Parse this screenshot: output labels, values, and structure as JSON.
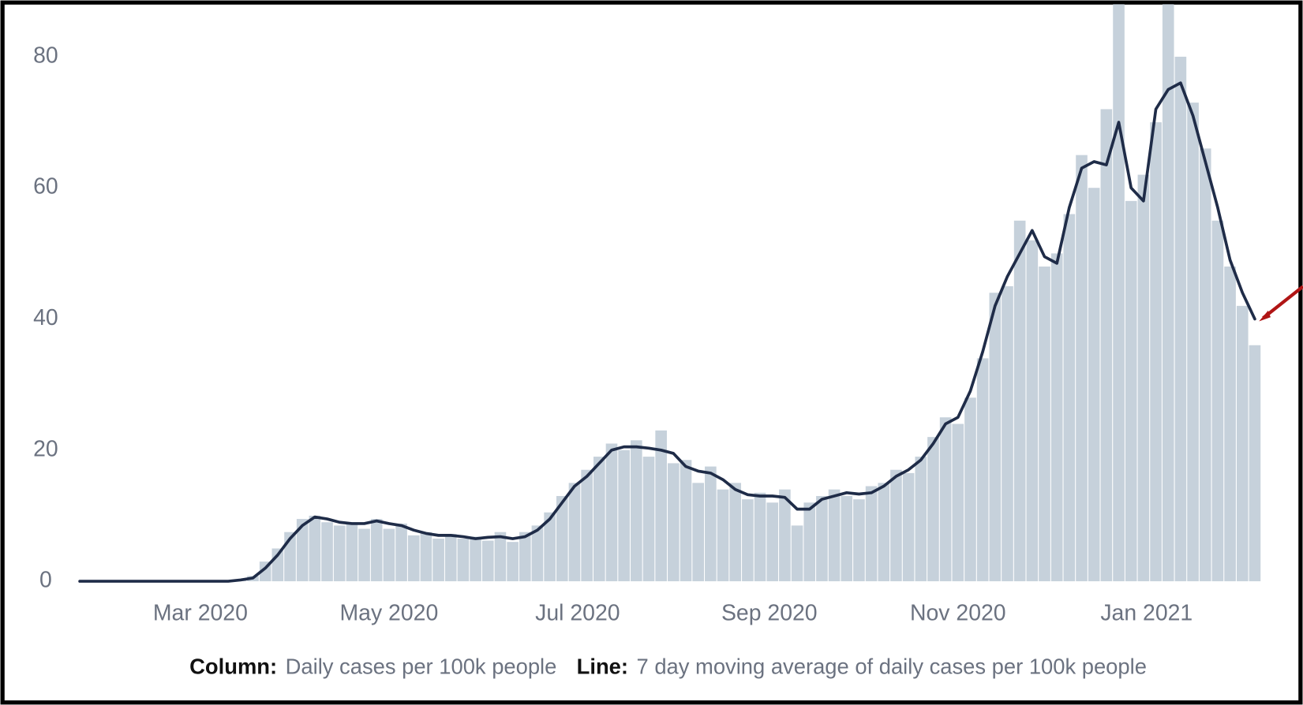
{
  "chart_data": {
    "type": "bar_line",
    "x": [
      0,
      4,
      8,
      12,
      16,
      20,
      24,
      28,
      32,
      36,
      40,
      44,
      48,
      52,
      56,
      60,
      64,
      68,
      72,
      76,
      80,
      84,
      88,
      92,
      96,
      100,
      104,
      108,
      112,
      116,
      120,
      124,
      128,
      132,
      136,
      140,
      144,
      148,
      152,
      156,
      160,
      164,
      168,
      172,
      176,
      180,
      184,
      188,
      192,
      196,
      200,
      204,
      208,
      212,
      216,
      220,
      224,
      228,
      232,
      236,
      240,
      244,
      248,
      252,
      256,
      260,
      264,
      268,
      272,
      276,
      280,
      284,
      288,
      292,
      296,
      300,
      304,
      308,
      312,
      316,
      320,
      324,
      328,
      332,
      336,
      340,
      344,
      348,
      352,
      356,
      360,
      364,
      368,
      372,
      376,
      380
    ],
    "series": [
      {
        "name": "Daily cases per 100k people",
        "label": "Column:",
        "type": "bar",
        "color": "#c6d1db",
        "values": [
          0,
          0,
          0,
          0,
          0,
          0,
          0,
          0,
          0,
          0,
          0,
          0,
          0,
          0.3,
          0.8,
          3,
          5,
          7.5,
          9.5,
          10,
          9,
          8.5,
          9,
          8,
          9.5,
          8,
          8.8,
          7,
          7.5,
          6.5,
          7.2,
          6.5,
          6.8,
          6.2,
          7.5,
          6,
          7.5,
          8.5,
          10.5,
          13,
          15,
          17,
          19,
          21,
          20,
          21.5,
          19,
          23,
          18,
          18.5,
          15,
          17.5,
          14,
          15,
          12.5,
          13.5,
          12,
          14,
          8.5,
          12,
          13,
          14,
          13,
          12.5,
          14.5,
          15,
          17,
          16.5,
          19,
          22,
          25,
          24,
          28,
          34,
          44,
          45,
          55,
          52,
          48,
          50,
          56,
          65,
          60,
          72,
          88,
          58,
          62,
          70,
          88,
          80,
          73,
          66,
          55,
          48,
          42,
          36
        ]
      },
      {
        "name": "7 day moving average of daily cases per 100k people",
        "label": "Line:",
        "type": "line",
        "color": "#1f2c48",
        "values": [
          0,
          0,
          0,
          0,
          0,
          0,
          0,
          0,
          0,
          0,
          0,
          0,
          0,
          0.2,
          0.5,
          2,
          4,
          6.5,
          8.5,
          9.8,
          9.5,
          9,
          8.8,
          8.8,
          9.2,
          8.8,
          8.5,
          7.8,
          7.3,
          7,
          7,
          6.8,
          6.5,
          6.7,
          6.8,
          6.5,
          6.8,
          7.8,
          9.5,
          12,
          14.5,
          16,
          18,
          20,
          20.5,
          20.5,
          20.3,
          20,
          19.5,
          17.5,
          16.8,
          16.5,
          15.5,
          14,
          13.2,
          13,
          13,
          12.8,
          11,
          11,
          12.5,
          13,
          13.5,
          13.3,
          13.5,
          14.5,
          16,
          17,
          18.5,
          21,
          24,
          25,
          29,
          35,
          42,
          46.5,
          50,
          53.5,
          49.5,
          48.5,
          57,
          63,
          64,
          63.5,
          70,
          60,
          58,
          72,
          75,
          76,
          71,
          64,
          57,
          49,
          44,
          40
        ]
      }
    ],
    "xlim": [
      0,
      380
    ],
    "xticks": [
      {
        "value": 39,
        "label": "Mar 2020"
      },
      {
        "value": 100,
        "label": "May 2020"
      },
      {
        "value": 161,
        "label": "Jul 2020"
      },
      {
        "value": 223,
        "label": "Sep 2020"
      },
      {
        "value": 284,
        "label": "Nov 2020"
      },
      {
        "value": 345,
        "label": "Jan 2021"
      }
    ],
    "ylim": [
      0,
      87
    ],
    "yticks": [
      0,
      20,
      40,
      60,
      80
    ],
    "grid": false
  }
}
